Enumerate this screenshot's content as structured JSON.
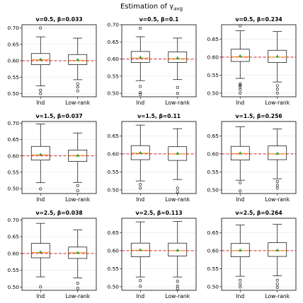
{
  "title": "Estimation of γ",
  "title_sub": "avg",
  "chart_data": [
    {
      "type": "box",
      "title": "ν=0.5, β=0.033",
      "categories": [
        "Ind",
        "Low-rank"
      ],
      "yticks": [
        0.5,
        0.55,
        0.6,
        0.65,
        0.7
      ],
      "ylim": [
        0.49,
        0.71
      ],
      "reference_line": 0.6,
      "grid": "y",
      "series": [
        {
          "name": "Ind",
          "whislo": 0.523,
          "q1": 0.588,
          "median": 0.603,
          "q3": 0.622,
          "whishi": 0.673,
          "mean": 0.604,
          "outliers": [
            0.7,
            0.51,
            0.5
          ]
        },
        {
          "name": "Low-rank",
          "whislo": 0.542,
          "q1": 0.588,
          "median": 0.601,
          "q3": 0.619,
          "whishi": 0.669,
          "mean": 0.603,
          "outliers": [
            0.53,
            0.52,
            0.508
          ]
        }
      ]
    },
    {
      "type": "box",
      "title": "ν=0.5, β=0.1",
      "categories": [
        "Ind",
        "Low-rank"
      ],
      "yticks": [
        0.5,
        0.55,
        0.6,
        0.65,
        0.7
      ],
      "ylim": [
        0.49,
        0.7
      ],
      "reference_line": 0.6,
      "grid": "y",
      "series": [
        {
          "name": "Ind",
          "whislo": 0.537,
          "q1": 0.59,
          "median": 0.603,
          "q3": 0.622,
          "whishi": 0.665,
          "mean": 0.605,
          "outliers": [
            0.69,
            0.52,
            0.502,
            0.497
          ]
        },
        {
          "name": "Low-rank",
          "whislo": 0.54,
          "q1": 0.59,
          "median": 0.601,
          "q3": 0.621,
          "whishi": 0.661,
          "mean": 0.603,
          "outliers": [
            0.517,
            0.5
          ]
        }
      ]
    },
    {
      "type": "box",
      "title": "ν=0.5, β=0.234",
      "categories": [
        "Ind",
        "Low-rank"
      ],
      "yticks": [
        0.5,
        0.55,
        0.6,
        0.65
      ],
      "ylim": [
        0.49,
        0.69
      ],
      "reference_line": 0.6,
      "grid": "y",
      "series": [
        {
          "name": "Ind",
          "whislo": 0.541,
          "q1": 0.588,
          "median": 0.601,
          "q3": 0.622,
          "whishi": 0.673,
          "mean": 0.603,
          "outliers": [
            0.687,
            0.526,
            0.522,
            0.518,
            0.51,
            0.5
          ]
        },
        {
          "name": "Low-rank",
          "whislo": 0.531,
          "q1": 0.585,
          "median": 0.6,
          "q3": 0.619,
          "whishi": 0.671,
          "mean": 0.602,
          "outliers": [
            0.521,
            0.511,
            0.5
          ]
        }
      ]
    },
    {
      "type": "box",
      "title": "ν=1.5, β=0.037",
      "categories": [
        "Ind",
        "Low-rank"
      ],
      "yticks": [
        0.5,
        0.55,
        0.6,
        0.65,
        0.7
      ],
      "ylim": [
        0.485,
        0.705
      ],
      "reference_line": 0.6,
      "grid": "y",
      "series": [
        {
          "name": "Ind",
          "whislo": 0.518,
          "q1": 0.587,
          "median": 0.603,
          "q3": 0.629,
          "whishi": 0.697,
          "mean": 0.604,
          "outliers": [
            0.499
          ]
        },
        {
          "name": "Low-rank",
          "whislo": 0.519,
          "q1": 0.583,
          "median": 0.601,
          "q3": 0.618,
          "whishi": 0.67,
          "mean": 0.601,
          "outliers": [
            0.509,
            0.494
          ]
        }
      ]
    },
    {
      "type": "box",
      "title": "ν=1.5, β=0.11",
      "categories": [
        "Ind",
        "Low-rank"
      ],
      "yticks": [
        0.5,
        0.55,
        0.6,
        0.65
      ],
      "ylim": [
        0.49,
        0.69
      ],
      "reference_line": 0.6,
      "grid": "y",
      "series": [
        {
          "name": "Ind",
          "whislo": 0.525,
          "q1": 0.584,
          "median": 0.602,
          "q3": 0.623,
          "whishi": 0.68,
          "mean": 0.603,
          "outliers": [
            0.515,
            0.505
          ]
        },
        {
          "name": "Low-rank",
          "whislo": 0.529,
          "q1": 0.582,
          "median": 0.6,
          "q3": 0.62,
          "whishi": 0.67,
          "mean": 0.601,
          "outliers": [
            0.505,
            0.495
          ]
        }
      ]
    },
    {
      "type": "box",
      "title": "ν=1.5, β=0.256",
      "categories": [
        "Ind",
        "Low-rank"
      ],
      "yticks": [
        0.5,
        0.55,
        0.6,
        0.65
      ],
      "ylim": [
        0.49,
        0.69
      ],
      "reference_line": 0.6,
      "grid": "y",
      "series": [
        {
          "name": "Ind",
          "whislo": 0.527,
          "q1": 0.583,
          "median": 0.601,
          "q3": 0.621,
          "whishi": 0.675,
          "mean": 0.602,
          "outliers": [
            0.52,
            0.497
          ]
        },
        {
          "name": "Low-rank",
          "whislo": 0.531,
          "q1": 0.584,
          "median": 0.6,
          "q3": 0.622,
          "whishi": 0.669,
          "mean": 0.601,
          "outliers": [
            0.523,
            0.513,
            0.505
          ]
        }
      ]
    },
    {
      "type": "box",
      "title": "ν=2.5, β=0.038",
      "categories": [
        "Ind",
        "Low-rank"
      ],
      "yticks": [
        0.5,
        0.55,
        0.6,
        0.65,
        0.7
      ],
      "ylim": [
        0.49,
        0.705
      ],
      "reference_line": 0.6,
      "grid": "y",
      "series": [
        {
          "name": "Ind",
          "whislo": 0.53,
          "q1": 0.587,
          "median": 0.603,
          "q3": 0.63,
          "whishi": 0.69,
          "mean": 0.604,
          "outliers": [
            0.5
          ]
        },
        {
          "name": "Low-rank",
          "whislo": 0.527,
          "q1": 0.585,
          "median": 0.602,
          "q3": 0.619,
          "whishi": 0.67,
          "mean": 0.602,
          "outliers": [
            0.511,
            0.496
          ]
        }
      ]
    },
    {
      "type": "box",
      "title": "ν=2.5, β=0.113",
      "categories": [
        "Ind",
        "Low-rank"
      ],
      "yticks": [
        0.5,
        0.55,
        0.6,
        0.65
      ],
      "ylim": [
        0.49,
        0.69
      ],
      "reference_line": 0.6,
      "grid": "y",
      "series": [
        {
          "name": "Ind",
          "whislo": 0.527,
          "q1": 0.583,
          "median": 0.601,
          "q3": 0.621,
          "whishi": 0.68,
          "mean": 0.602,
          "outliers": [
            0.517,
            0.501
          ]
        },
        {
          "name": "Low-rank",
          "whislo": 0.527,
          "q1": 0.585,
          "median": 0.6,
          "q3": 0.621,
          "whishi": 0.681,
          "mean": 0.601,
          "outliers": [
            0.515,
            0.502,
            0.495
          ]
        }
      ]
    },
    {
      "type": "box",
      "title": "ν=2.5, β=0.264",
      "categories": [
        "Ind",
        "Low-rank"
      ],
      "yticks": [
        0.5,
        0.55,
        0.6,
        0.65
      ],
      "ylim": [
        0.49,
        0.69
      ],
      "reference_line": 0.6,
      "grid": "y",
      "series": [
        {
          "name": "Ind",
          "whislo": 0.529,
          "q1": 0.583,
          "median": 0.6,
          "q3": 0.62,
          "whishi": 0.671,
          "mean": 0.601,
          "outliers": [
            0.518,
            0.508,
            0.499
          ]
        },
        {
          "name": "Low-rank",
          "whislo": 0.53,
          "q1": 0.584,
          "median": 0.6,
          "q3": 0.622,
          "whishi": 0.673,
          "mean": 0.601,
          "outliers": [
            0.518,
            0.507,
            0.498
          ]
        }
      ]
    }
  ],
  "colors": {
    "reference_line": "#d62728",
    "median": "#ff7f0e",
    "mean": "#2ca02c",
    "box": "#000000",
    "grid": "#e6e6e6"
  }
}
